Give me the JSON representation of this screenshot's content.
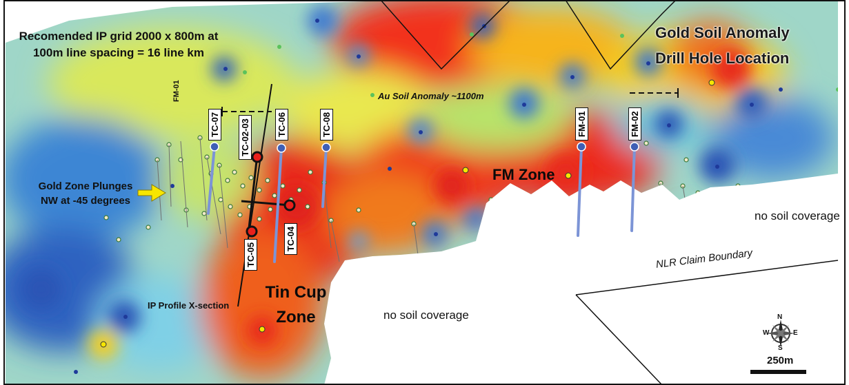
{
  "title": {
    "line1": "Gold Soil Anomaly",
    "line2": "Drill Hole Location"
  },
  "ip_grid_note": {
    "line1": "Recomended IP grid 2000 x 800m at",
    "line2": "100m line spacing = 16 line km"
  },
  "plunge_note": {
    "line1": "Gold Zone Plunges",
    "line2": "NW at -45 degrees"
  },
  "zones": {
    "fm_zone": "FM Zone",
    "tin_cup_line1": "Tin Cup",
    "tin_cup_line2": "Zone"
  },
  "annotations": {
    "au_anomaly": "Au Soil Anomaly ~1100m",
    "ip_profile": "IP Profile X-section",
    "claim_boundary": "NLR Claim Boundary",
    "no_soil_right": "no soil coverage",
    "no_soil_center": "no soil coverage",
    "fm01_rotated": "FM-01"
  },
  "drill_holes": [
    {
      "id": "TC-07"
    },
    {
      "id": "TC-02-03"
    },
    {
      "id": "TC-06"
    },
    {
      "id": "TC-08"
    },
    {
      "id": "FM-01"
    },
    {
      "id": "FM-02"
    },
    {
      "id": "TC-05"
    },
    {
      "id": "TC-04"
    }
  ],
  "scale_bar": {
    "label": "250m"
  },
  "compass": {
    "n": "N",
    "e": "E",
    "s": "S",
    "w": "W",
    "icon": "compass-rose-icon"
  },
  "colors": {
    "anomaly_high": "#e8201c",
    "anomaly_mid": "#f7d117",
    "anomaly_low": "#2b5fb8",
    "drill_trace": "#7c94d6",
    "arrow": "#f7e600"
  }
}
